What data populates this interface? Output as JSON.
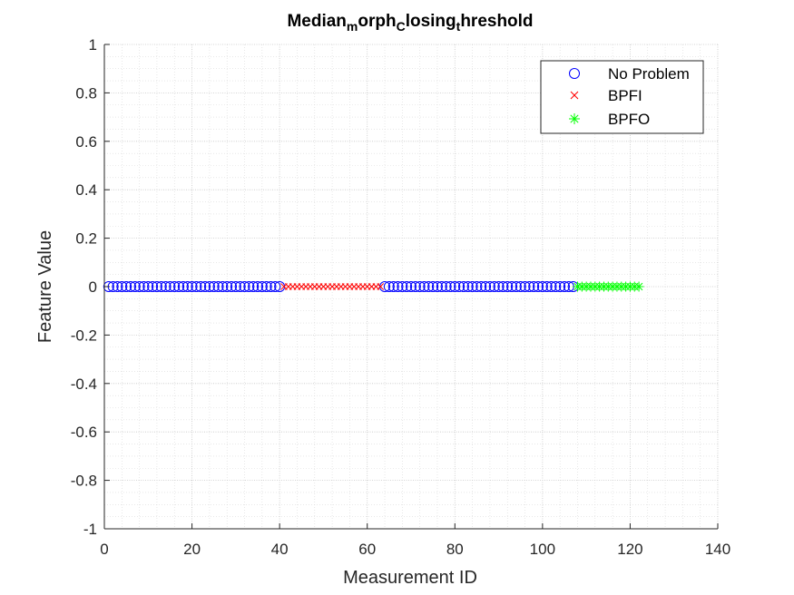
{
  "chart_data": {
    "type": "scatter",
    "title": {
      "parts": [
        {
          "text": "Median",
          "sub": false
        },
        {
          "text": "m",
          "sub": true
        },
        {
          "text": "orph",
          "sub": false
        },
        {
          "text": "C",
          "sub": true
        },
        {
          "text": "losing",
          "sub": false
        },
        {
          "text": "t",
          "sub": true
        },
        {
          "text": "hreshold",
          "sub": false
        }
      ]
    },
    "xlabel": "Measurement ID",
    "ylabel": "Feature Value",
    "xlim": [
      0,
      140
    ],
    "ylim": [
      -1,
      1
    ],
    "xticks": [
      0,
      20,
      40,
      60,
      80,
      100,
      120,
      140
    ],
    "xtick_labels": [
      "0",
      "20",
      "40",
      "60",
      "80",
      "100",
      "120",
      "140"
    ],
    "yticks": [
      1,
      0.8,
      0.6,
      0.4,
      0.2,
      0,
      -0.2,
      -0.4,
      -0.6,
      -0.8,
      -1
    ],
    "ytick_labels": [
      "1",
      "0.8",
      "0.6",
      "0.4",
      "0.2",
      "0",
      "-0.2",
      "-0.4",
      "-0.6",
      "-0.8",
      "-1"
    ],
    "grid": true,
    "minor_grid": true,
    "legend_position": "top-right",
    "series": [
      {
        "name": "No Problem",
        "marker": "circle",
        "color": "#0000ff",
        "ranges": [
          [
            1,
            40
          ],
          [
            64,
            107
          ]
        ],
        "y": 0
      },
      {
        "name": "BPFI",
        "marker": "x",
        "color": "#ff0000",
        "ranges": [
          [
            41,
            63
          ]
        ],
        "y": 0
      },
      {
        "name": "BPFO",
        "marker": "asterisk",
        "color": "#00ff00",
        "ranges": [
          [
            108,
            122
          ]
        ],
        "y": 0
      }
    ]
  }
}
